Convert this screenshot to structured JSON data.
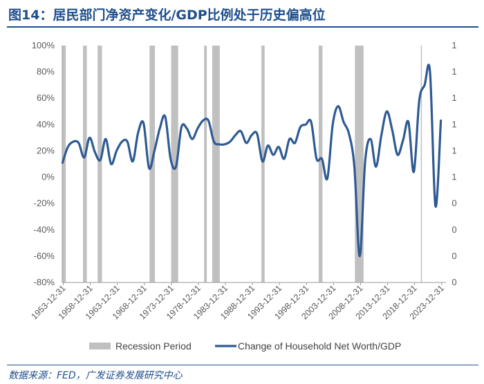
{
  "title": "图14：居民部门净资产变化/GDP比例处于历史偏高位",
  "source": "数据来源：FED，广发证券发展研究中心",
  "chart_data": {
    "type": "line",
    "title": "图14：居民部门净资产变化/GDP比例处于历史偏高位",
    "y_left": {
      "range": [
        -80,
        100
      ],
      "ticks": [
        "100%",
        "80%",
        "60%",
        "40%",
        "20%",
        "0%",
        "-20%",
        "-40%",
        "-60%",
        "-80%"
      ]
    },
    "y_right": {
      "ticks": [
        "1",
        "1",
        "1",
        "1",
        "1",
        "1",
        "0",
        "0",
        "0",
        "0"
      ]
    },
    "x_range": [
      1953.75,
      2024.75
    ],
    "x_ticks": [
      "1953-12-31",
      "1958-12-31",
      "1963-12-31",
      "1968-12-31",
      "1973-12-31",
      "1978-12-31",
      "1983-12-31",
      "1988-12-31",
      "1993-12-31",
      "1998-12-31",
      "2003-12-31",
      "2008-12-31",
      "2013-12-31",
      "2018-12-31",
      "2023-12-31"
    ],
    "recessions": [
      {
        "start": 1953.6,
        "end": 1954.4
      },
      {
        "start": 1957.6,
        "end": 1958.3
      },
      {
        "start": 1960.3,
        "end": 1961.1
      },
      {
        "start": 1969.9,
        "end": 1970.9
      },
      {
        "start": 1973.9,
        "end": 1975.2
      },
      {
        "start": 1980.0,
        "end": 1980.5
      },
      {
        "start": 1981.5,
        "end": 1982.9
      },
      {
        "start": 1990.6,
        "end": 1991.2
      },
      {
        "start": 2001.2,
        "end": 2001.9
      },
      {
        "start": 2007.9,
        "end": 2009.5
      },
      {
        "start": 2020.1,
        "end": 2020.3
      }
    ],
    "series": [
      {
        "name": "Change of Household Net Worth/GDP",
        "color": "#2e5a93",
        "points": [
          [
            1953.8,
            11
          ],
          [
            1954.8,
            23
          ],
          [
            1955.8,
            27
          ],
          [
            1956.8,
            26
          ],
          [
            1957.8,
            15
          ],
          [
            1958.8,
            30
          ],
          [
            1959.8,
            19
          ],
          [
            1960.8,
            13
          ],
          [
            1961.8,
            29
          ],
          [
            1962.8,
            10
          ],
          [
            1963.8,
            20
          ],
          [
            1964.8,
            27
          ],
          [
            1965.8,
            27
          ],
          [
            1966.8,
            12
          ],
          [
            1967.8,
            34
          ],
          [
            1968.8,
            41
          ],
          [
            1969.8,
            7
          ],
          [
            1970.8,
            20
          ],
          [
            1971.8,
            37
          ],
          [
            1972.8,
            46
          ],
          [
            1973.8,
            14
          ],
          [
            1974.8,
            8
          ],
          [
            1975.8,
            38
          ],
          [
            1976.8,
            37
          ],
          [
            1977.8,
            29
          ],
          [
            1978.8,
            37
          ],
          [
            1979.8,
            43
          ],
          [
            1980.8,
            43
          ],
          [
            1981.8,
            27
          ],
          [
            1982.8,
            25
          ],
          [
            1983.8,
            25
          ],
          [
            1984.8,
            27
          ],
          [
            1985.8,
            32
          ],
          [
            1986.8,
            35
          ],
          [
            1987.8,
            26
          ],
          [
            1988.8,
            32
          ],
          [
            1989.8,
            33
          ],
          [
            1990.8,
            12
          ],
          [
            1991.8,
            24
          ],
          [
            1992.8,
            17
          ],
          [
            1993.8,
            23
          ],
          [
            1994.8,
            14
          ],
          [
            1995.8,
            29
          ],
          [
            1996.8,
            26
          ],
          [
            1997.8,
            38
          ],
          [
            1998.8,
            40
          ],
          [
            1999.8,
            42
          ],
          [
            2000.8,
            14
          ],
          [
            2001.8,
            14
          ],
          [
            2002.8,
            -1
          ],
          [
            2003.8,
            40
          ],
          [
            2004.8,
            54
          ],
          [
            2005.8,
            42
          ],
          [
            2006.8,
            33
          ],
          [
            2007.8,
            8
          ],
          [
            2008.8,
            -60
          ],
          [
            2009.8,
            12
          ],
          [
            2010.8,
            29
          ],
          [
            2011.8,
            8
          ],
          [
            2012.8,
            32
          ],
          [
            2013.8,
            50
          ],
          [
            2014.8,
            36
          ],
          [
            2015.8,
            17
          ],
          [
            2016.8,
            28
          ],
          [
            2017.8,
            42
          ],
          [
            2018.8,
            4
          ],
          [
            2019.8,
            58
          ],
          [
            2020.8,
            70
          ],
          [
            2021.8,
            80
          ],
          [
            2022.8,
            -22
          ],
          [
            2023.8,
            43
          ]
        ]
      }
    ],
    "legend": [
      {
        "label": "Recession Period",
        "kind": "bar",
        "color": "#c0c0c0"
      },
      {
        "label": "Change of Household Net Worth/GDP",
        "kind": "line",
        "color": "#2e5a93"
      }
    ],
    "legend_position": "bottom"
  }
}
